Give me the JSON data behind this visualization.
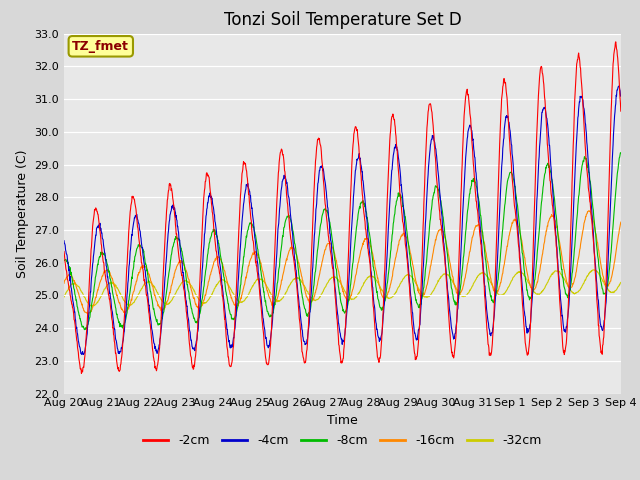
{
  "title": "Tonzi Soil Temperature Set D",
  "xlabel": "Time",
  "ylabel": "Soil Temperature (C)",
  "ylim": [
    22.0,
    33.0
  ],
  "yticks": [
    22.0,
    23.0,
    24.0,
    25.0,
    26.0,
    27.0,
    28.0,
    29.0,
    30.0,
    31.0,
    32.0,
    33.0
  ],
  "series_labels": [
    "-2cm",
    "-4cm",
    "-8cm",
    "-16cm",
    "-32cm"
  ],
  "series_colors": [
    "#ff0000",
    "#0000cc",
    "#00bb00",
    "#ff8800",
    "#cccc00"
  ],
  "annotation_text": "TZ_fmet",
  "annotation_box_color": "#ffff99",
  "annotation_border_color": "#999900",
  "fig_bg_color": "#d8d8d8",
  "plot_bg_color": "#e8e8e8",
  "grid_color": "#ffffff",
  "xtick_labels": [
    "Aug 20",
    "Aug 21",
    "Aug 22",
    "Aug 23",
    "Aug 24",
    "Aug 25",
    "Aug 26",
    "Aug 27",
    "Aug 28",
    "Aug 29",
    "Aug 30",
    "Aug 31",
    "Sep 1",
    "Sep 2",
    "Sep 3",
    "Sep 4"
  ],
  "title_fontsize": 12,
  "axis_label_fontsize": 9,
  "tick_fontsize": 8,
  "n_days": 15,
  "ppd": 96,
  "base_temp": 25.0
}
